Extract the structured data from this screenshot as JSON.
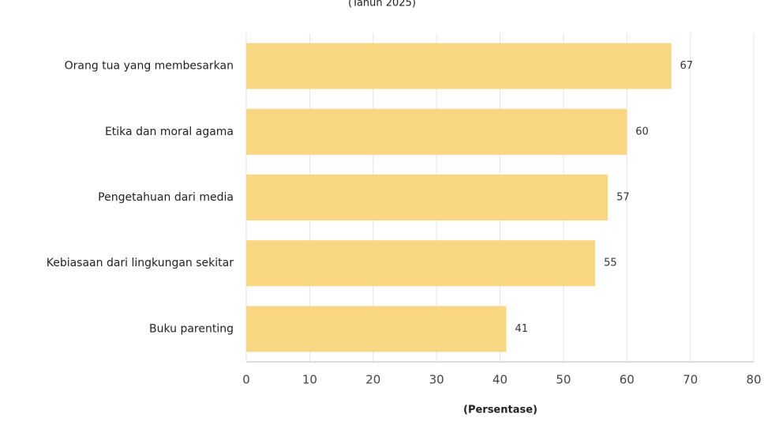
{
  "chart_data": {
    "type": "barh",
    "subtitle": "(Tahun 2025)",
    "categories": [
      "Orang tua yang membesarkan",
      "Etika dan moral agama",
      "Pengetahuan dari media",
      "Kebiasaan dari lingkungan sekitar",
      "Buku parenting"
    ],
    "values": [
      67,
      60,
      57,
      55,
      41
    ],
    "color": "#f9d681",
    "xlim": [
      0,
      80
    ],
    "xticks": [
      0,
      10,
      20,
      30,
      40,
      50,
      60,
      70,
      80
    ],
    "xlabel": "(Persentase)",
    "grid": true
  }
}
